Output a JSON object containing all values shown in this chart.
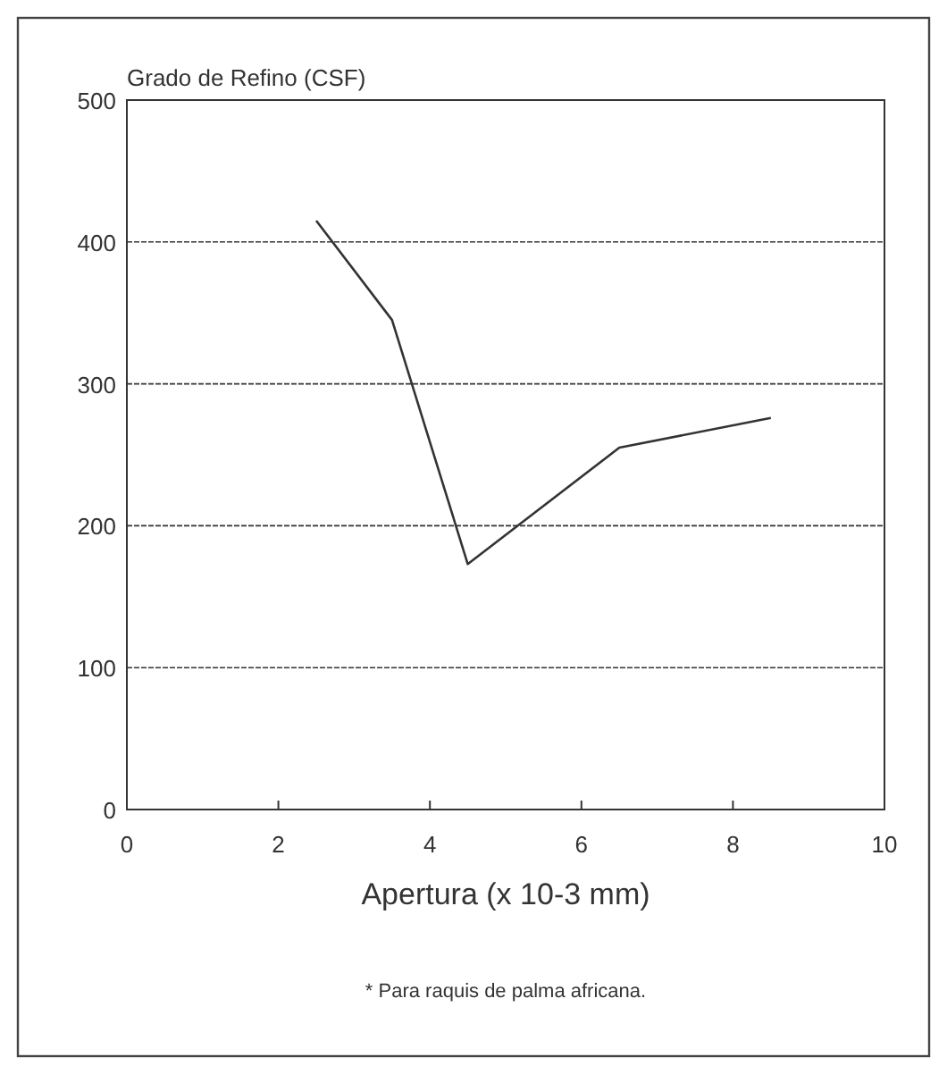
{
  "chart_data": {
    "type": "line",
    "ylabel": "Grado de Refino (CSF)",
    "xlabel": "Apertura (x 10-3 mm)",
    "x": [
      2.5,
      3.5,
      4.5,
      6.5,
      8.5
    ],
    "series": [
      {
        "color": "#333333",
        "values": [
          415,
          345,
          173,
          255,
          276
        ]
      }
    ],
    "xlim": [
      0,
      10
    ],
    "xticks": [
      0,
      2,
      4,
      6,
      8,
      10
    ],
    "ylim": [
      0,
      500
    ],
    "yticks": [
      0,
      100,
      200,
      300,
      400,
      500
    ],
    "grid": "y",
    "marker": "none",
    "line_style": "solid",
    "annotations": [
      "* Para raquis de palma africana."
    ]
  }
}
